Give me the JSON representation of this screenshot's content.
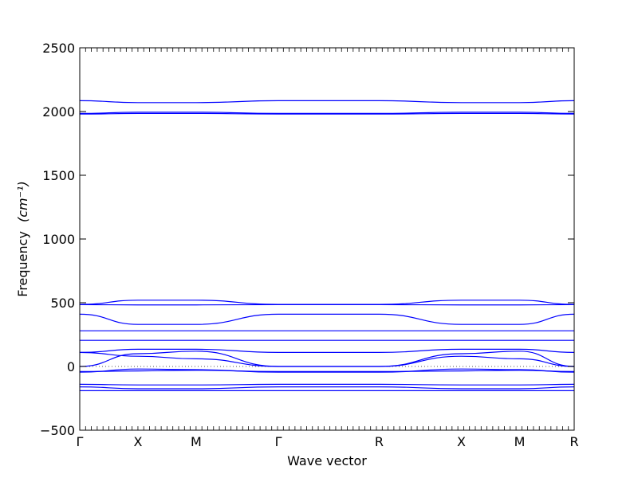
{
  "chart_data": {
    "type": "line",
    "xlabel": "Wave vector",
    "ylabel": "Frequency",
    "ylabel_unit": "(cm⁻¹)",
    "ylim": [
      -500,
      2500
    ],
    "yticks": [
      -500,
      0,
      500,
      1000,
      1500,
      2000,
      2500
    ],
    "ytick_labels": [
      "−500",
      "0",
      "500",
      "1000",
      "1500",
      "2000",
      "2500"
    ],
    "xlim": [
      0,
      8.5
    ],
    "high_symmetry_points": [
      {
        "label": "Γ",
        "x": 0
      },
      {
        "label": "X",
        "x": 1
      },
      {
        "label": "M",
        "x": 2
      },
      {
        "label": "Γ",
        "x": 3.4142
      },
      {
        "label": "R",
        "x": 5.1463
      },
      {
        "label": "X",
        "x": 6.5605
      },
      {
        "label": "M",
        "x": 7.5605
      },
      {
        "label": "R",
        "x": 8.5
      }
    ],
    "zero_line": true,
    "line_color": "#0000ff",
    "grid": false,
    "bands": [
      {
        "x": [
          0,
          1,
          2,
          3.4142,
          5.1463,
          6.5605,
          7.5605,
          8.5
        ],
        "y": [
          2085,
          2070,
          2070,
          2085,
          2085,
          2070,
          2070,
          2085
        ]
      },
      {
        "x": [
          0,
          1,
          2,
          3.4142,
          5.1463,
          6.5605,
          7.5605,
          8.5
        ],
        "y": [
          1985,
          1995,
          1995,
          1985,
          1985,
          1995,
          1995,
          1985
        ]
      },
      {
        "x": [
          0,
          1,
          2,
          3.4142,
          5.1463,
          6.5605,
          7.5605,
          8.5
        ],
        "y": [
          1980,
          1985,
          1985,
          1980,
          1980,
          1985,
          1985,
          1980
        ]
      },
      {
        "x": [
          0,
          1,
          2,
          3.4142,
          5.1463,
          6.5605,
          7.5605,
          8.5
        ],
        "y": [
          487,
          520,
          520,
          487,
          487,
          520,
          520,
          487
        ]
      },
      {
        "x": [
          0,
          1,
          2,
          3.4142,
          5.1463,
          6.5605,
          7.5605,
          8.5
        ],
        "y": [
          485,
          483,
          483,
          485,
          485,
          483,
          483,
          485
        ]
      },
      {
        "x": [
          0,
          1,
          2,
          3.4142,
          5.1463,
          6.5605,
          7.5605,
          8.5
        ],
        "y": [
          410,
          330,
          330,
          410,
          410,
          330,
          330,
          410
        ]
      },
      {
        "x": [
          0,
          1,
          2,
          3.4142,
          5.1463,
          6.5605,
          7.5605,
          8.5
        ],
        "y": [
          280,
          280,
          280,
          280,
          280,
          280,
          280,
          280
        ]
      },
      {
        "x": [
          0,
          1,
          2,
          3.4142,
          5.1463,
          6.5605,
          7.5605,
          8.5
        ],
        "y": [
          205,
          205,
          205,
          205,
          205,
          205,
          205,
          205
        ]
      },
      {
        "x": [
          0,
          1,
          2,
          3.4142,
          5.1463,
          6.5605,
          7.5605,
          8.5
        ],
        "y": [
          110,
          135,
          135,
          110,
          110,
          135,
          135,
          110
        ]
      },
      {
        "x": [
          0,
          1,
          2,
          3.4142,
          5.1463,
          6.5605,
          7.5605,
          8.5
        ],
        "y": [
          110,
          80,
          60,
          0,
          0,
          80,
          60,
          0
        ]
      },
      {
        "x": [
          0,
          1,
          2,
          3.4142,
          5.1463,
          6.5605,
          7.5605,
          8.5
        ],
        "y": [
          0,
          100,
          120,
          0,
          0,
          100,
          120,
          0
        ]
      },
      {
        "x": [
          0,
          1,
          2,
          3.4142,
          5.1463,
          6.5605,
          7.5605,
          8.5
        ],
        "y": [
          -40,
          -35,
          -30,
          -40,
          -40,
          -35,
          -30,
          -40
        ]
      },
      {
        "x": [
          0,
          1,
          2,
          3.4142,
          5.1463,
          6.5605,
          7.5605,
          8.5
        ],
        "y": [
          -45,
          -20,
          -25,
          -45,
          -45,
          -20,
          -25,
          -45
        ]
      },
      {
        "x": [
          0,
          1,
          2,
          3.4142,
          5.1463,
          6.5605,
          7.5605,
          8.5
        ],
        "y": [
          -140,
          -145,
          -145,
          -140,
          -140,
          -145,
          -145,
          -140
        ]
      },
      {
        "x": [
          0,
          1,
          2,
          3.4142,
          5.1463,
          6.5605,
          7.5605,
          8.5
        ],
        "y": [
          -160,
          -175,
          -175,
          -160,
          -160,
          -175,
          -175,
          -160
        ]
      },
      {
        "x": [
          0,
          1,
          2,
          3.4142,
          5.1463,
          6.5605,
          7.5605,
          8.5
        ],
        "y": [
          -190,
          -190,
          -190,
          -190,
          -190,
          -190,
          -190,
          -190
        ]
      }
    ]
  }
}
